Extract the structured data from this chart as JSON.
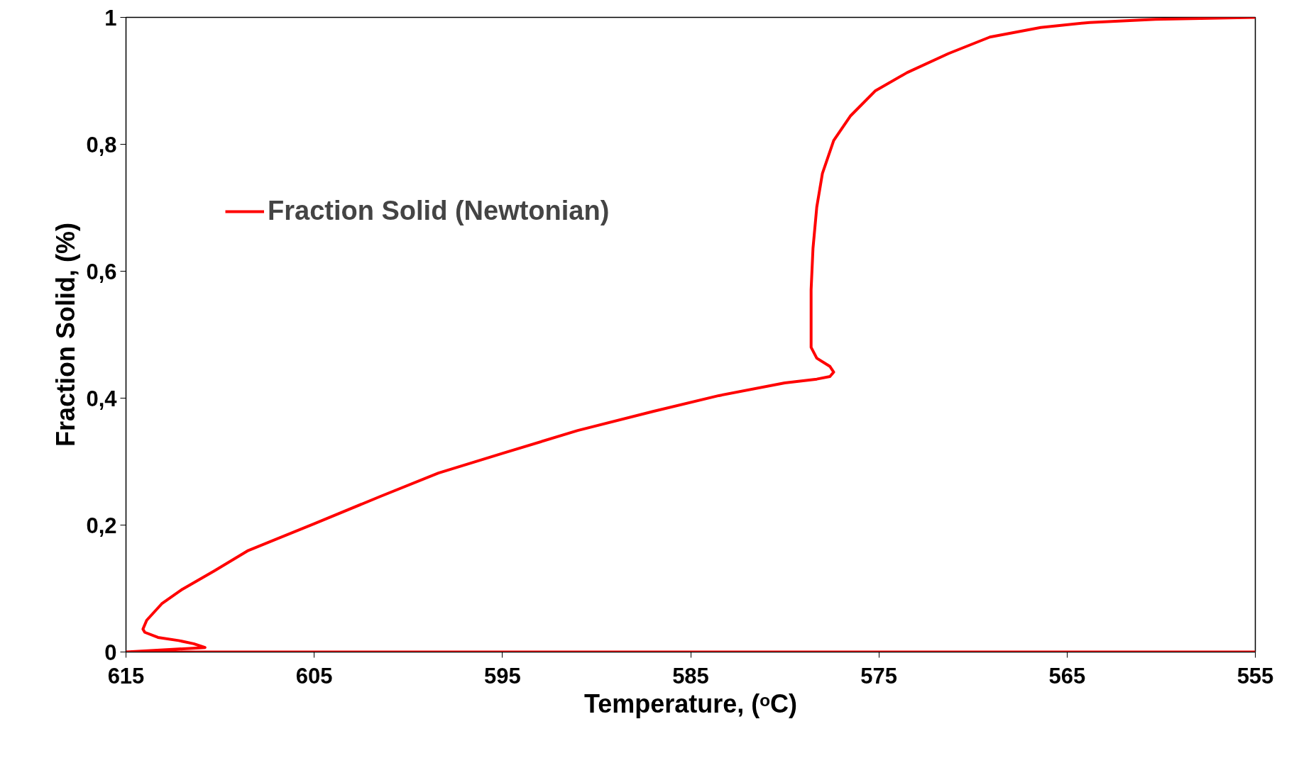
{
  "chart_data": {
    "type": "line",
    "xlabel": "Temperature, (ᵒC)",
    "ylabel": "Fraction Solid, (%)",
    "xlim": [
      615,
      555
    ],
    "ylim": [
      0,
      1
    ],
    "xticks": [
      615,
      605,
      595,
      585,
      575,
      565,
      555
    ],
    "yticks": [
      {
        "value": 0,
        "label": "0"
      },
      {
        "value": 0.2,
        "label": "0,2"
      },
      {
        "value": 0.4,
        "label": "0,4"
      },
      {
        "value": 0.6,
        "label": "0,6"
      },
      {
        "value": 0.8,
        "label": "0,8"
      },
      {
        "value": 1,
        "label": "1"
      }
    ],
    "grid": false,
    "legend": "top left",
    "marker": "none",
    "line_style": "solid",
    "series": [
      {
        "name": "Fraction Solid (Newtonian)",
        "color": "#ff0000",
        "x": [
          555,
          615,
          610.8,
          611.4,
          612.2,
          613.3,
          614.0,
          614.1,
          613.9,
          613.1,
          612.0,
          610.3,
          608.5,
          605.0,
          601.5,
          598.4,
          595.0,
          591.0,
          587.0,
          583.5,
          580.0,
          578.3,
          577.6,
          577.4,
          577.6,
          578.3,
          578.6,
          578.6,
          578.6,
          578.5,
          578.3,
          578.0,
          577.4,
          576.5,
          575.2,
          573.5,
          571.3,
          569.1,
          566.4,
          563.8,
          560.3,
          555
        ],
        "values": [
          0,
          0,
          0.007,
          0.013,
          0.018,
          0.023,
          0.031,
          0.036,
          0.05,
          0.076,
          0.099,
          0.128,
          0.16,
          0.202,
          0.245,
          0.282,
          0.313,
          0.349,
          0.379,
          0.404,
          0.424,
          0.43,
          0.434,
          0.441,
          0.45,
          0.463,
          0.48,
          0.506,
          0.571,
          0.636,
          0.701,
          0.754,
          0.806,
          0.845,
          0.884,
          0.913,
          0.943,
          0.969,
          0.984,
          0.992,
          0.997,
          1.0
        ]
      }
    ]
  }
}
